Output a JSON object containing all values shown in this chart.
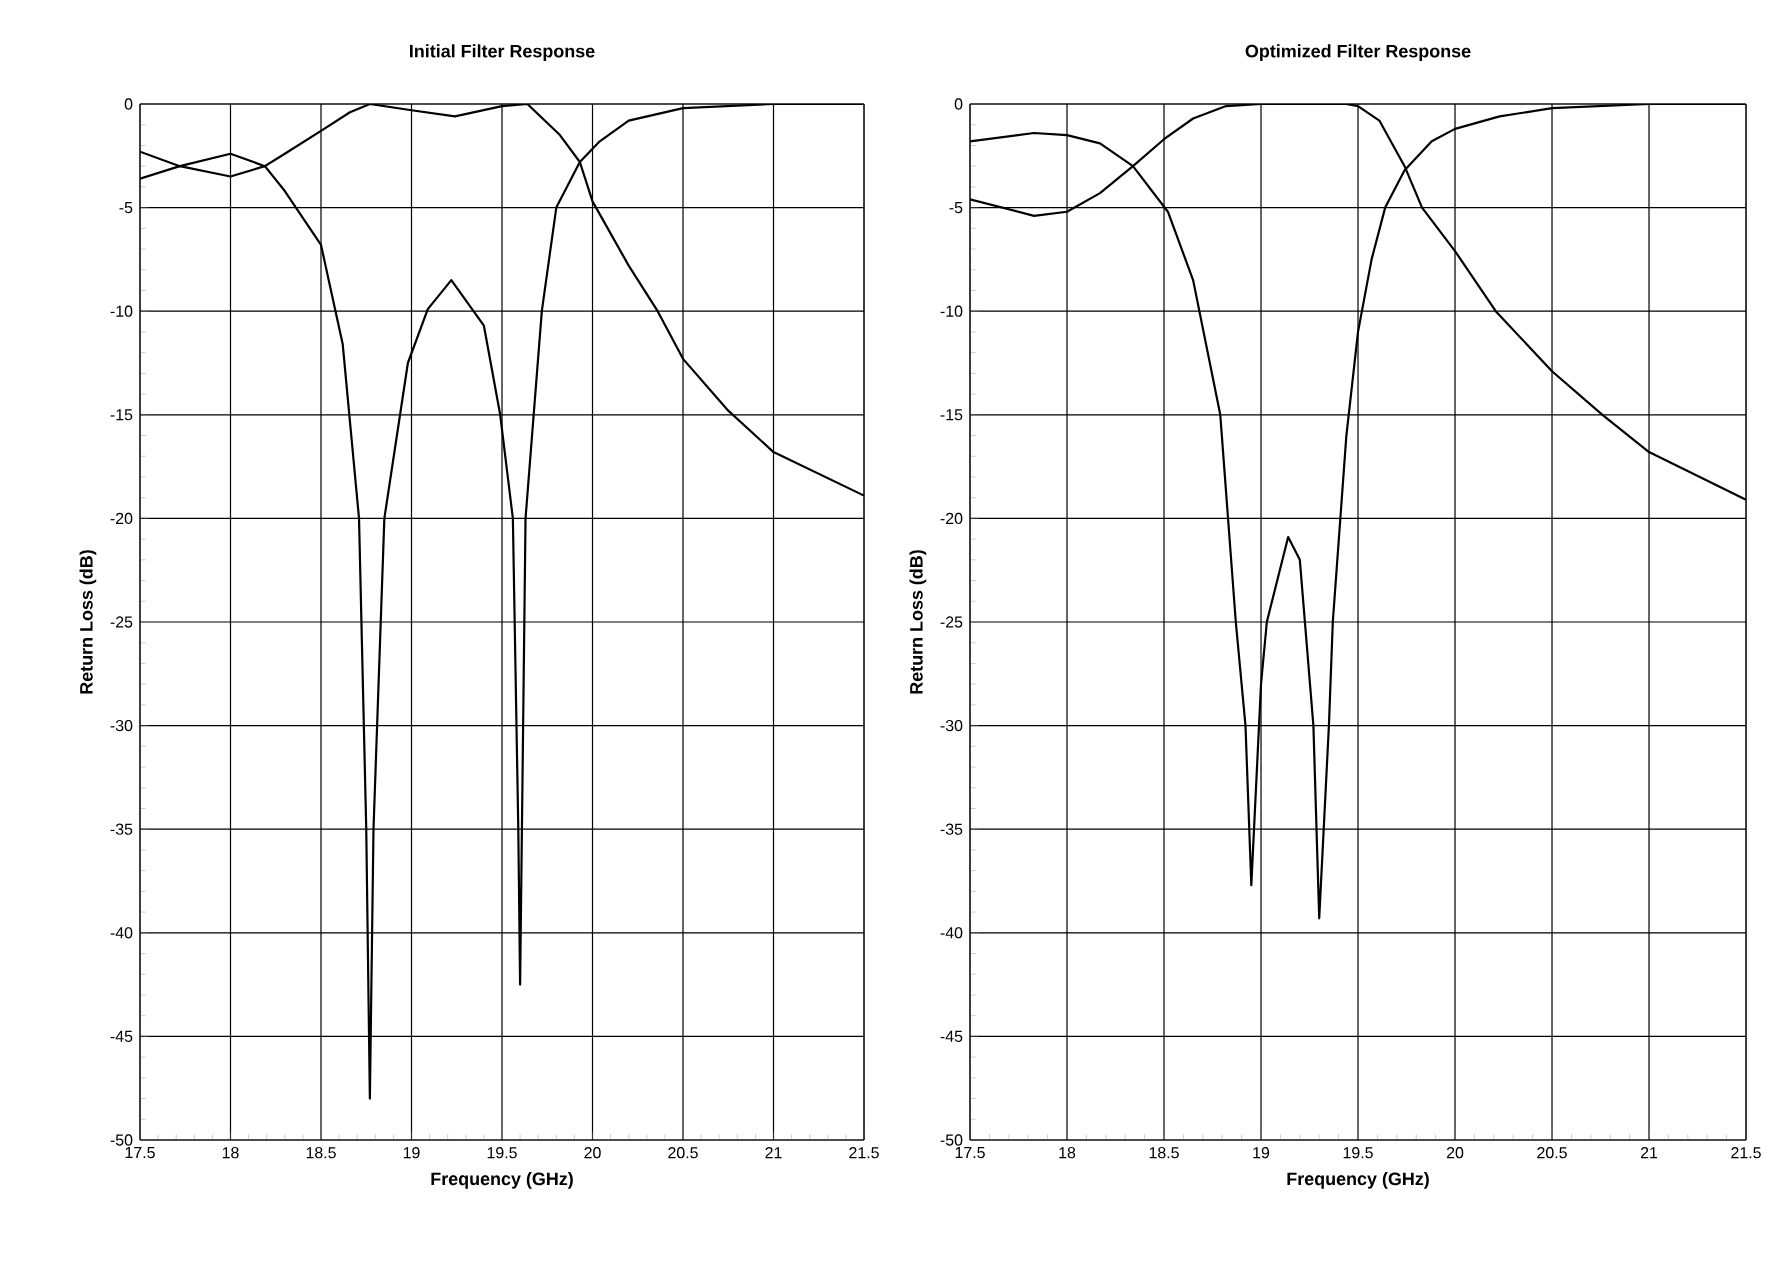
{
  "chart_data": [
    {
      "type": "line",
      "title": "Initial Filter Response",
      "xlabel": "Frequency (GHz)",
      "ylabel": "Return Loss (dB)",
      "xlim": [
        17.5,
        21.5
      ],
      "ylim": [
        -50,
        0
      ],
      "xticks": [
        17.5,
        18,
        18.5,
        19,
        19.5,
        20,
        20.5,
        21,
        21.5
      ],
      "yticks": [
        -50,
        -45,
        -40,
        -35,
        -30,
        -25,
        -20,
        -15,
        -10,
        -5,
        0
      ],
      "grid": true,
      "marker": "none",
      "line_style": "solid",
      "series": [
        {
          "color": "#000000",
          "x": [
            17.5,
            17.72,
            18.0,
            18.19,
            18.3,
            18.5,
            18.62,
            18.71,
            18.75,
            18.77,
            18.79,
            18.85,
            18.98,
            19.09,
            19.22,
            19.4,
            19.49,
            19.56,
            19.59,
            19.6,
            19.61,
            19.63,
            19.72,
            19.8,
            19.93,
            20.04,
            20.2,
            20.5,
            21.0,
            21.5
          ],
          "values": [
            -2.3,
            -3.0,
            -2.4,
            -3.0,
            -4.2,
            -6.8,
            -11.6,
            -20,
            -35,
            -48,
            -35,
            -20,
            -12.5,
            -9.9,
            -8.5,
            -10.7,
            -15,
            -20,
            -35,
            -42.5,
            -35,
            -20,
            -10,
            -5,
            -2.8,
            -1.8,
            -0.8,
            -0.2,
            0,
            0
          ]
        },
        {
          "color": "#000000",
          "x": [
            17.5,
            17.72,
            18.0,
            18.19,
            18.3,
            18.5,
            18.66,
            18.77,
            19.0,
            19.24,
            19.5,
            19.64,
            19.82,
            19.93,
            20.0,
            20.2,
            20.36,
            20.5,
            20.75,
            21.0,
            21.5
          ],
          "values": [
            -3.6,
            -3.0,
            -3.5,
            -3.0,
            -2.4,
            -1.3,
            -0.4,
            0,
            -0.3,
            -0.6,
            -0.1,
            0,
            -1.5,
            -2.8,
            -4.7,
            -7.8,
            -10,
            -12.3,
            -14.8,
            -16.8,
            -18.9
          ]
        }
      ]
    },
    {
      "type": "line",
      "title": "Optimized Filter Response",
      "xlabel": "Frequency (GHz)",
      "ylabel": "Return Loss (dB)",
      "xlim": [
        17.5,
        21.5
      ],
      "ylim": [
        -50,
        0
      ],
      "xticks": [
        17.5,
        18,
        18.5,
        19,
        19.5,
        20,
        20.5,
        21,
        21.5
      ],
      "yticks": [
        -50,
        -45,
        -40,
        -35,
        -30,
        -25,
        -20,
        -15,
        -10,
        -5,
        0
      ],
      "grid": true,
      "marker": "none",
      "line_style": "solid",
      "series": [
        {
          "color": "#000000",
          "x": [
            17.5,
            17.83,
            18.0,
            18.17,
            18.34,
            18.52,
            18.65,
            18.79,
            18.87,
            18.92,
            18.95,
            19.0,
            19.03,
            19.07,
            19.14,
            19.2,
            19.27,
            19.3,
            19.35,
            19.37,
            19.44,
            19.5,
            19.57,
            19.64,
            19.74,
            19.88,
            20.0,
            20.23,
            20.5,
            21.0,
            21.5
          ],
          "values": [
            -1.8,
            -1.4,
            -1.5,
            -1.9,
            -3.0,
            -5.2,
            -8.5,
            -15,
            -25,
            -30,
            -37.7,
            -28,
            -25,
            -23.5,
            -20.9,
            -22,
            -30,
            -39.3,
            -30,
            -25,
            -16,
            -11,
            -7.5,
            -5,
            -3.2,
            -1.8,
            -1.2,
            -0.6,
            -0.2,
            0,
            0
          ]
        },
        {
          "color": "#000000",
          "x": [
            17.5,
            17.83,
            18.0,
            18.17,
            18.34,
            18.5,
            18.65,
            18.82,
            19.0,
            19.44,
            19.5,
            19.61,
            19.74,
            19.83,
            20.0,
            20.21,
            20.5,
            20.76,
            21.0,
            21.5
          ],
          "values": [
            -4.6,
            -5.4,
            -5.2,
            -4.3,
            -3.0,
            -1.7,
            -0.7,
            -0.1,
            0,
            0,
            -0.1,
            -0.8,
            -3.0,
            -5,
            -7.1,
            -10,
            -12.9,
            -15,
            -16.8,
            -19.1
          ]
        }
      ]
    }
  ]
}
